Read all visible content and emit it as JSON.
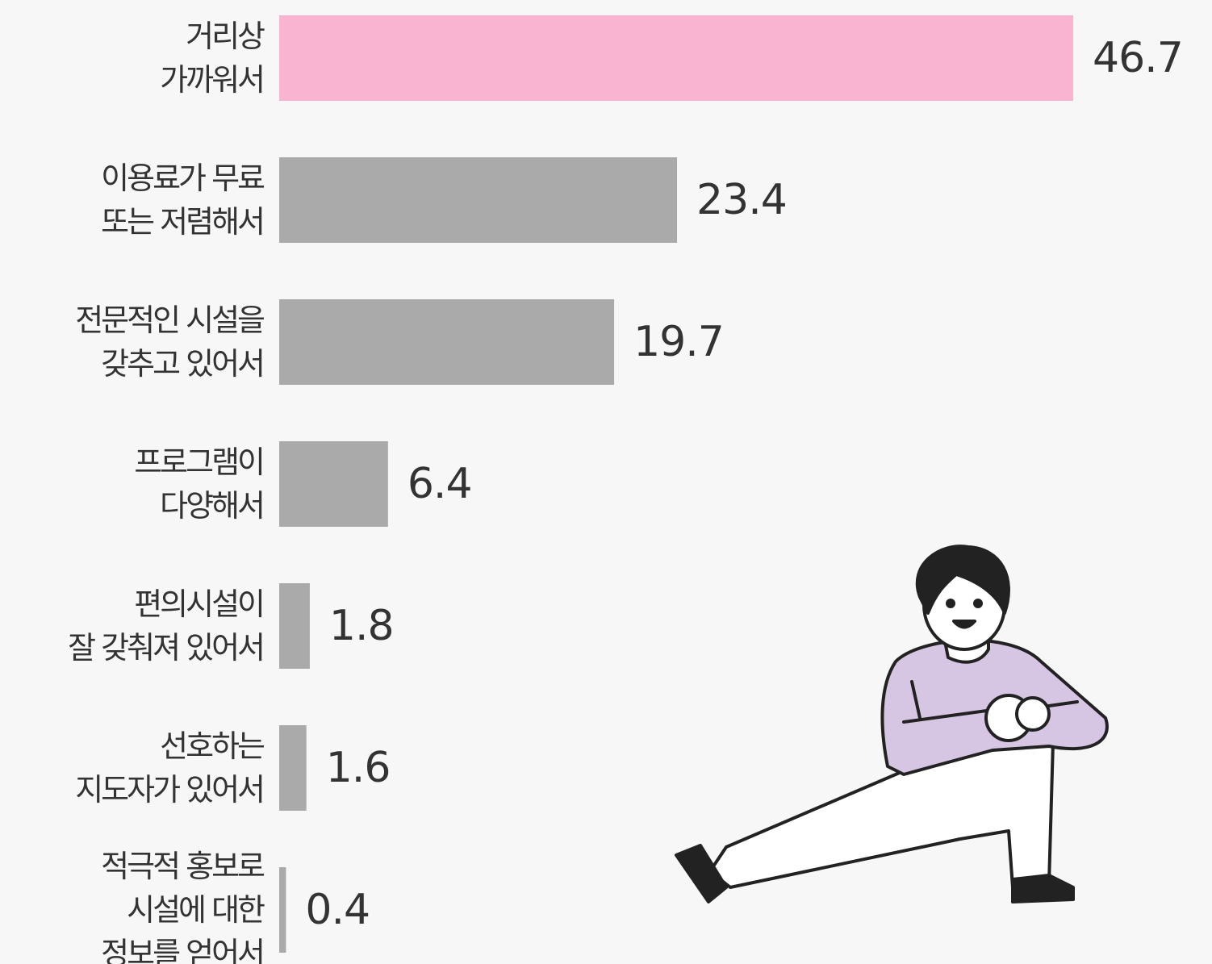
{
  "chart_data": {
    "type": "hbar",
    "categories": [
      "거리상\n가까워서",
      "이용료가 무료\n또는 저렴해서",
      "전문적인 시설을\n갖추고 있어서",
      "프로그램이\n다양해서",
      "편의시설이\n잘 갖춰져 있어서",
      "선호하는\n지도자가 있어서",
      "적극적 홍보로\n시설에 대한\n정보를 얻어서"
    ],
    "values": [
      46.7,
      23.4,
      19.7,
      6.4,
      1.8,
      1.6,
      0.4
    ],
    "colors": [
      "#f9b4d1",
      "#aaaaaa",
      "#aaaaaa",
      "#aaaaaa",
      "#aaaaaa",
      "#aaaaaa",
      "#aaaaaa"
    ]
  }
}
